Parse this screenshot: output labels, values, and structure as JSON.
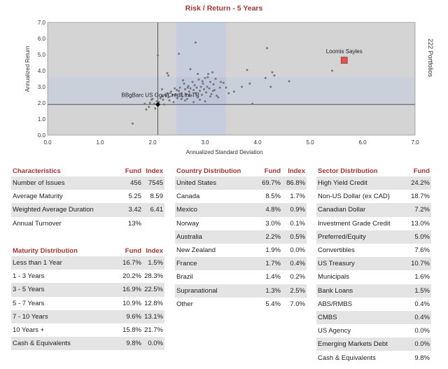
{
  "chart_data": {
    "type": "scatter",
    "title": "Risk / Return - 5 Years",
    "xlabel": "Annualized Standard Deviation",
    "ylabel": "Annualized Return",
    "right_label": "222 Portfolios",
    "xlim": [
      0,
      7
    ],
    "ylim": [
      0,
      7
    ],
    "x_ticks": [
      "0.0",
      "1.0",
      "2.0",
      "3.0",
      "4.0",
      "5.0",
      "6.0",
      "7.0"
    ],
    "y_ticks": [
      "0.0",
      "1.0",
      "2.0",
      "3.0",
      "4.0",
      "5.0",
      "6.0",
      "7.0"
    ],
    "benchmark_lines": {
      "x": 2.1,
      "y": 1.9
    },
    "highlight_band": {
      "x": [
        2.45,
        3.4
      ],
      "y": [
        1.9,
        3.6
      ]
    },
    "colors": {
      "plot_bg": "#d4d4d4",
      "band": "#c6cedd",
      "points": "#777777",
      "fund": "#d9534f",
      "title": "#b0332f"
    },
    "labeled_points": [
      {
        "name": "Loomis Sayles",
        "x": 5.65,
        "y": 4.65,
        "marker": "square"
      },
      {
        "name": "BBgBarc US Govt/Credit Int TR",
        "x": 2.1,
        "y": 1.9,
        "marker": "diamond"
      }
    ],
    "points": [
      [
        1.62,
        0.72
      ],
      [
        1.85,
        1.95
      ],
      [
        1.88,
        1.6
      ],
      [
        1.93,
        1.75
      ],
      [
        1.95,
        2.0
      ],
      [
        1.98,
        2.2
      ],
      [
        2.0,
        2.25
      ],
      [
        2.03,
        1.95
      ],
      [
        2.05,
        1.65
      ],
      [
        2.08,
        2.1
      ],
      [
        2.12,
        2.05
      ],
      [
        2.15,
        2.3
      ],
      [
        2.18,
        2.4
      ],
      [
        2.2,
        2.2
      ],
      [
        2.22,
        1.9
      ],
      [
        2.25,
        2.45
      ],
      [
        2.28,
        2.6
      ],
      [
        2.3,
        2.35
      ],
      [
        2.32,
        2.15
      ],
      [
        2.35,
        2.7
      ],
      [
        2.38,
        2.5
      ],
      [
        2.4,
        2.05
      ],
      [
        2.42,
        2.9
      ],
      [
        2.44,
        2.55
      ],
      [
        2.47,
        2.3
      ],
      [
        2.5,
        2.75
      ],
      [
        2.52,
        2.95
      ],
      [
        2.55,
        2.6
      ],
      [
        2.57,
        2.4
      ],
      [
        2.6,
        3.2
      ],
      [
        2.62,
        2.85
      ],
      [
        2.64,
        2.55
      ],
      [
        2.66,
        2.25
      ],
      [
        2.68,
        3.05
      ],
      [
        2.7,
        2.7
      ],
      [
        2.72,
        2.9
      ],
      [
        2.74,
        2.45
      ],
      [
        2.76,
        3.3
      ],
      [
        2.78,
        2.8
      ],
      [
        2.8,
        3.1
      ],
      [
        2.82,
        2.6
      ],
      [
        2.84,
        2.95
      ],
      [
        2.86,
        2.35
      ],
      [
        2.88,
        3.45
      ],
      [
        2.9,
        2.75
      ],
      [
        2.92,
        3.0
      ],
      [
        2.94,
        2.5
      ],
      [
        2.96,
        3.2
      ],
      [
        2.98,
        2.85
      ],
      [
        3.0,
        3.55
      ],
      [
        3.02,
        2.65
      ],
      [
        3.04,
        3.0
      ],
      [
        3.06,
        3.8
      ],
      [
        3.08,
        2.9
      ],
      [
        3.1,
        3.3
      ],
      [
        3.12,
        2.55
      ],
      [
        3.14,
        3.9
      ],
      [
        3.16,
        3.15
      ],
      [
        3.18,
        2.8
      ],
      [
        3.2,
        3.5
      ],
      [
        3.22,
        2.45
      ],
      [
        3.25,
        2.35
      ],
      [
        3.28,
        2.95
      ],
      [
        3.3,
        3.3
      ],
      [
        3.35,
        3.25
      ],
      [
        3.4,
        2.95
      ],
      [
        3.45,
        2.6
      ],
      [
        3.55,
        2.7
      ],
      [
        3.7,
        3.0
      ],
      [
        3.8,
        4.05
      ],
      [
        3.85,
        3.2
      ],
      [
        3.9,
        1.95
      ],
      [
        4.15,
        3.55
      ],
      [
        4.18,
        5.4
      ],
      [
        4.25,
        3.0
      ],
      [
        4.28,
        3.9
      ],
      [
        4.32,
        3.7
      ],
      [
        4.6,
        3.35
      ],
      [
        5.42,
        4.0
      ],
      [
        2.28,
        3.85
      ],
      [
        2.3,
        3.7
      ],
      [
        2.5,
        5.05
      ],
      [
        2.72,
        4.1
      ],
      [
        2.82,
        5.75
      ],
      [
        2.1,
        4.95
      ],
      [
        2.18,
        2.85
      ],
      [
        2.62,
        2.15
      ],
      [
        2.9,
        2.2
      ],
      [
        3.0,
        2.1
      ],
      [
        2.78,
        2.05
      ],
      [
        2.7,
        2.45
      ],
      [
        2.55,
        2.25
      ],
      [
        2.46,
        2.8
      ],
      [
        3.1,
        2.4
      ],
      [
        2.95,
        3.35
      ],
      [
        3.05,
        3.6
      ],
      [
        2.86,
        3.8
      ],
      [
        3.15,
        2.75
      ],
      [
        2.67,
        2.95
      ],
      [
        2.58,
        3.4
      ]
    ]
  },
  "tables": {
    "characteristics": {
      "headers": [
        "Characteristics",
        "Fund",
        "Index"
      ],
      "rows": [
        [
          "Number of Issues",
          "456",
          "7545"
        ],
        [
          "Average Maturity",
          "5.25",
          "8.59"
        ],
        [
          "Weighted Average Duration",
          "3.42",
          "6.41"
        ],
        [
          "Annual Turnover",
          "13%",
          ""
        ]
      ]
    },
    "maturity": {
      "headers": [
        "Maturity Distribution",
        "Fund",
        "Index"
      ],
      "rows": [
        [
          "Less than 1 Year",
          "16.7%",
          "1.5%"
        ],
        [
          "1 - 3 Years",
          "20.2%",
          "28.3%"
        ],
        [
          "3 - 5 Years",
          "16.9%",
          "22.5%"
        ],
        [
          "5 - 7 Years",
          "10.9%",
          "12.8%"
        ],
        [
          "7 - 10 Years",
          "9.6%",
          "13.1%"
        ],
        [
          "10 Years +",
          "15.8%",
          "21.7%"
        ],
        [
          "Cash & Equivalents",
          "9.8%",
          "0.0%"
        ]
      ]
    },
    "country": {
      "headers": [
        "Country Distribution",
        "Fund",
        "Index"
      ],
      "rows": [
        [
          "United States",
          "69.7%",
          "86.8%"
        ],
        [
          "Canada",
          "8.5%",
          "1.7%"
        ],
        [
          "Mexico",
          "4.8%",
          "0.9%"
        ],
        [
          "Norway",
          "3.0%",
          "0.1%"
        ],
        [
          "Australia",
          "2.2%",
          "0.5%"
        ],
        [
          "New Zealand",
          "1.9%",
          "0.0%"
        ],
        [
          "France",
          "1.7%",
          "0.4%"
        ],
        [
          "Brazil",
          "1.4%",
          "0.2%"
        ],
        [
          "Supranational",
          "1.3%",
          "2.5%"
        ],
        [
          "Other",
          "5.4%",
          "7.0%"
        ]
      ]
    },
    "sector": {
      "headers": [
        "Sector Distribution",
        "Fund"
      ],
      "rows": [
        [
          "High Yield Credit",
          "24.2%"
        ],
        [
          "Non-US Dollar (ex CAD)",
          "18.7%"
        ],
        [
          "Canadian Dollar",
          "7.2%"
        ],
        [
          "Investment Grade Credit",
          "13.0%"
        ],
        [
          "Preferred/Equity",
          "5.0%"
        ],
        [
          "Convertibles",
          "7.6%"
        ],
        [
          "US Treasury",
          "10.7%"
        ],
        [
          "Municipals",
          "1.6%"
        ],
        [
          "Bank Loans",
          "1.5%"
        ],
        [
          "ABS/RMBS",
          "0.4%"
        ],
        [
          "CMBS",
          "0.4%"
        ],
        [
          "US Agency",
          "0.0%"
        ],
        [
          "Emerging Markets Debt",
          "0.0%"
        ],
        [
          "Cash & Equivalents",
          "9.8%"
        ]
      ]
    }
  }
}
